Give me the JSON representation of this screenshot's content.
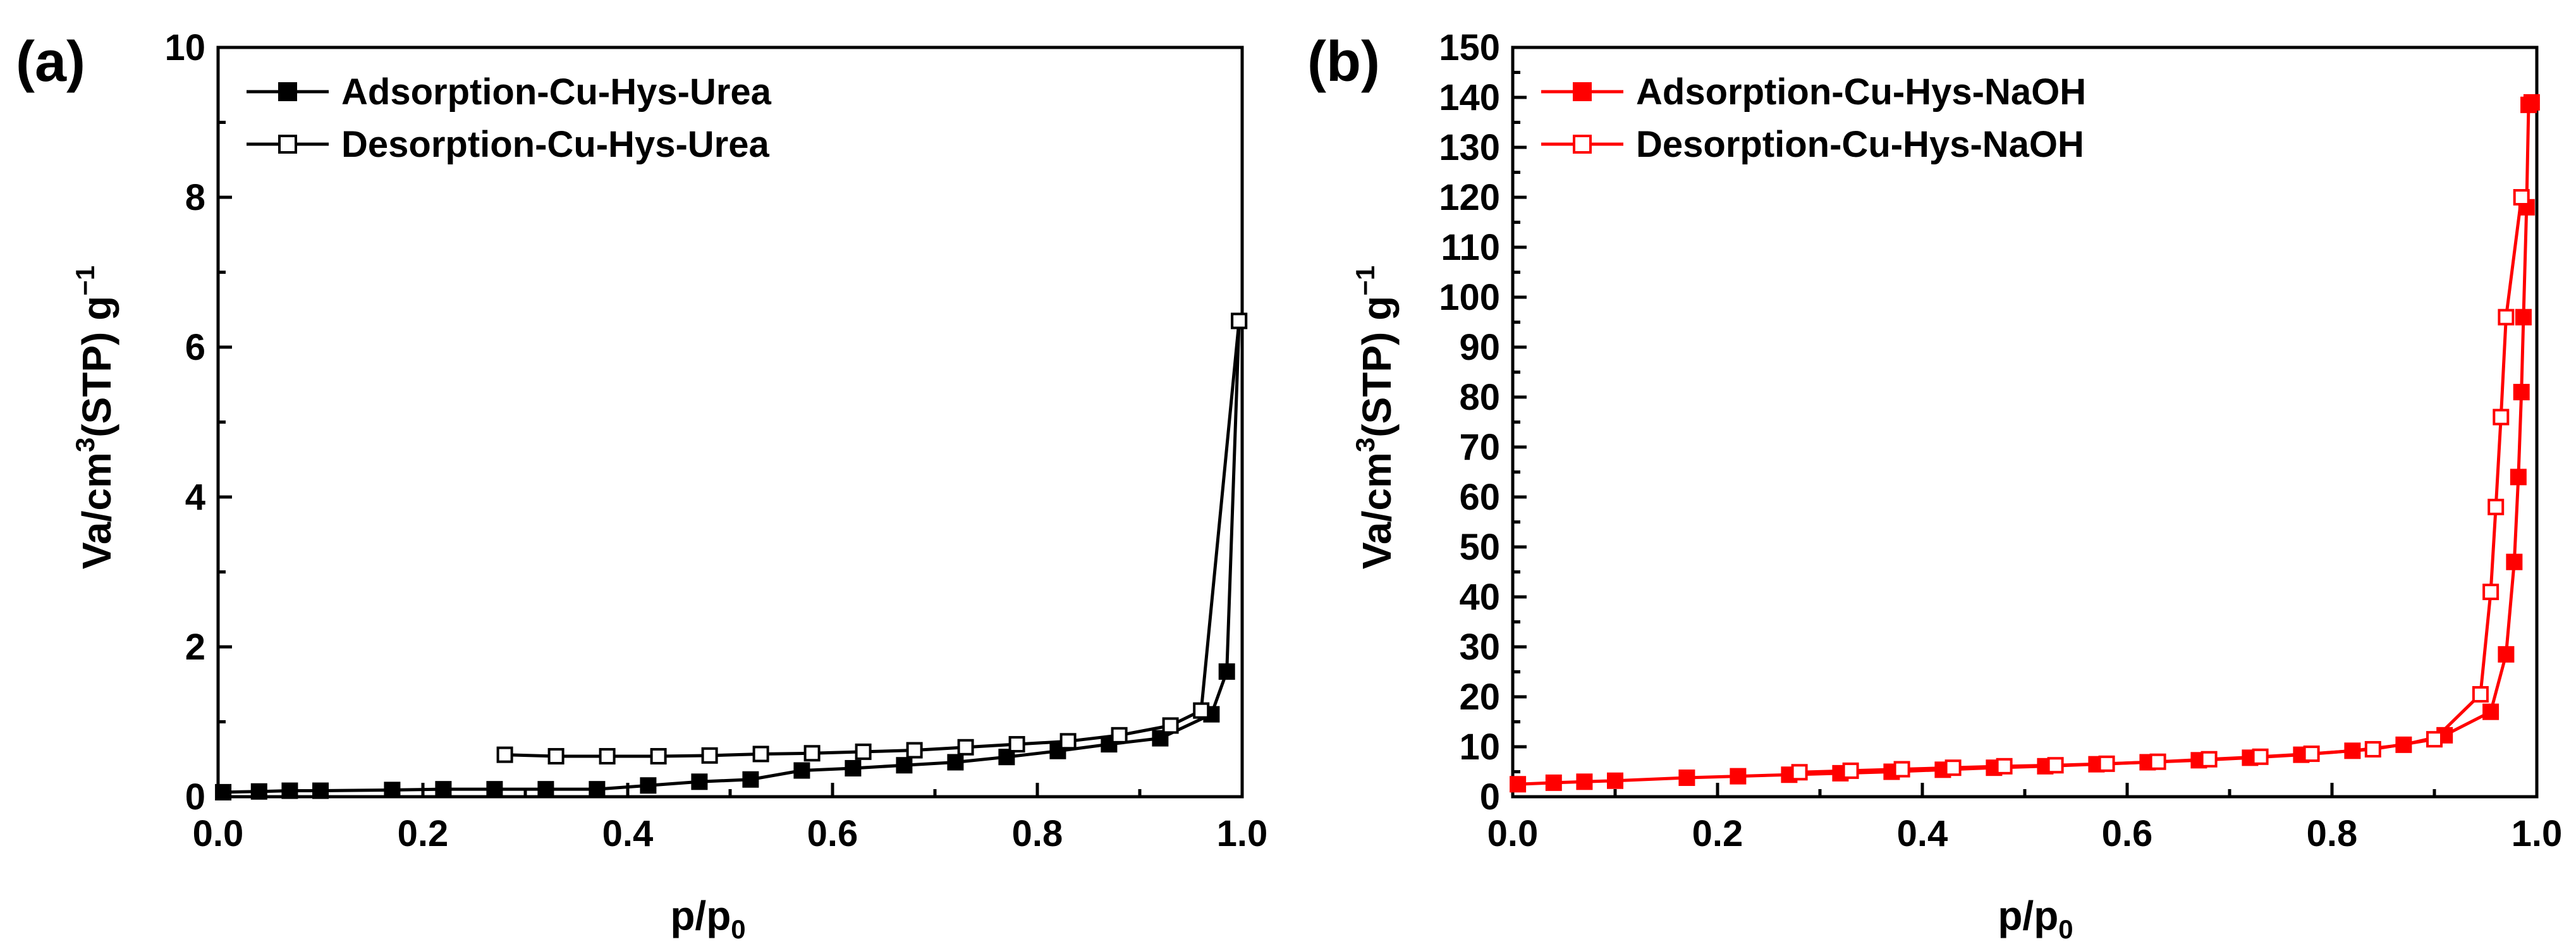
{
  "chart_data": [
    {
      "type": "line",
      "panel_label": "(a)",
      "xlabel": "p/p",
      "xlabel_sub": "0",
      "ylabel": "Va/cm",
      "ylabel_sup": "3",
      "ylabel_rest": "(STP) g",
      "ylabel_sup2": "−1",
      "xlim": [
        0.0,
        1.0
      ],
      "ylim": [
        0,
        10
      ],
      "xticks": [
        0.0,
        0.2,
        0.4,
        0.6,
        0.8,
        1.0
      ],
      "xtick_labels": [
        "0.0",
        "0.2",
        "0.4",
        "0.6",
        "0.8",
        "1.0"
      ],
      "yticks": [
        0,
        2,
        4,
        6,
        8,
        10
      ],
      "ytick_labels": [
        "0",
        "2",
        "4",
        "6",
        "8",
        "10"
      ],
      "legend_position": "top-left",
      "color": "#000000",
      "series": [
        {
          "name": "Adsorption-Cu-Hys-Urea",
          "marker": "filled-square",
          "x": [
            0.005,
            0.04,
            0.07,
            0.1,
            0.17,
            0.22,
            0.27,
            0.32,
            0.37,
            0.42,
            0.47,
            0.52,
            0.57,
            0.62,
            0.67,
            0.72,
            0.77,
            0.82,
            0.87,
            0.92,
            0.97,
            0.985,
            0.997
          ],
          "y": [
            0.06,
            0.07,
            0.08,
            0.08,
            0.09,
            0.1,
            0.1,
            0.1,
            0.1,
            0.15,
            0.2,
            0.23,
            0.35,
            0.38,
            0.42,
            0.46,
            0.53,
            0.61,
            0.7,
            0.78,
            1.1,
            1.67,
            6.35
          ]
        },
        {
          "name": "Desorption-Cu-Hys-Urea",
          "marker": "open-square",
          "x": [
            0.997,
            0.96,
            0.93,
            0.88,
            0.83,
            0.78,
            0.73,
            0.68,
            0.63,
            0.58,
            0.53,
            0.48,
            0.43,
            0.38,
            0.33,
            0.28
          ],
          "y": [
            6.35,
            1.15,
            0.95,
            0.82,
            0.74,
            0.7,
            0.66,
            0.62,
            0.6,
            0.58,
            0.57,
            0.55,
            0.54,
            0.54,
            0.54,
            0.56
          ]
        }
      ]
    },
    {
      "type": "line",
      "panel_label": "(b)",
      "xlabel": "p/p",
      "xlabel_sub": "0",
      "ylabel": "Va/cm",
      "ylabel_sup": "3",
      "ylabel_rest": "(STP) g",
      "ylabel_sup2": "−1",
      "xlim": [
        0.0,
        1.0
      ],
      "ylim": [
        0,
        150
      ],
      "xticks": [
        0.0,
        0.2,
        0.4,
        0.6,
        0.8,
        1.0
      ],
      "xtick_labels": [
        "0.0",
        "0.2",
        "0.4",
        "0.6",
        "0.8",
        "1.0"
      ],
      "yticks": [
        0,
        10,
        20,
        30,
        40,
        50,
        60,
        70,
        80,
        90,
        100,
        110,
        120,
        130,
        140,
        150
      ],
      "ytick_labels": [
        "0",
        "10",
        "20",
        "30",
        "40",
        "50",
        "60",
        "70",
        "80",
        "90",
        "100",
        "110",
        "120",
        "130",
        "140",
        "150"
      ],
      "legend_position": "top-left",
      "color": "#ff0000",
      "series": [
        {
          "name": "Adsorption-Cu-Hys-NaOH",
          "marker": "filled-square",
          "x": [
            0.005,
            0.04,
            0.07,
            0.1,
            0.17,
            0.22,
            0.27,
            0.32,
            0.37,
            0.42,
            0.47,
            0.52,
            0.57,
            0.62,
            0.67,
            0.72,
            0.77,
            0.82,
            0.87,
            0.91,
            0.955,
            0.97,
            0.978,
            0.982,
            0.985,
            0.987,
            0.99,
            0.992,
            0.995
          ],
          "y": [
            2.5,
            2.8,
            3.0,
            3.2,
            3.8,
            4.1,
            4.4,
            4.7,
            5.0,
            5.4,
            5.8,
            6.1,
            6.5,
            6.9,
            7.3,
            7.8,
            8.4,
            9.2,
            10.4,
            12.3,
            17.0,
            28.5,
            47.0,
            64.0,
            81.0,
            96.0,
            118.0,
            138.5,
            139.0
          ]
        },
        {
          "name": "Desorption-Cu-Hys-NaOH",
          "marker": "open-square",
          "x": [
            0.985,
            0.97,
            0.965,
            0.96,
            0.955,
            0.945,
            0.9,
            0.84,
            0.78,
            0.73,
            0.68,
            0.63,
            0.58,
            0.53,
            0.48,
            0.43,
            0.38,
            0.33,
            0.28
          ],
          "y": [
            120.0,
            96.0,
            76.0,
            58.0,
            41.0,
            20.5,
            11.5,
            9.5,
            8.6,
            8.0,
            7.5,
            7.0,
            6.6,
            6.3,
            6.1,
            5.8,
            5.5,
            5.2,
            4.9
          ]
        }
      ]
    }
  ]
}
